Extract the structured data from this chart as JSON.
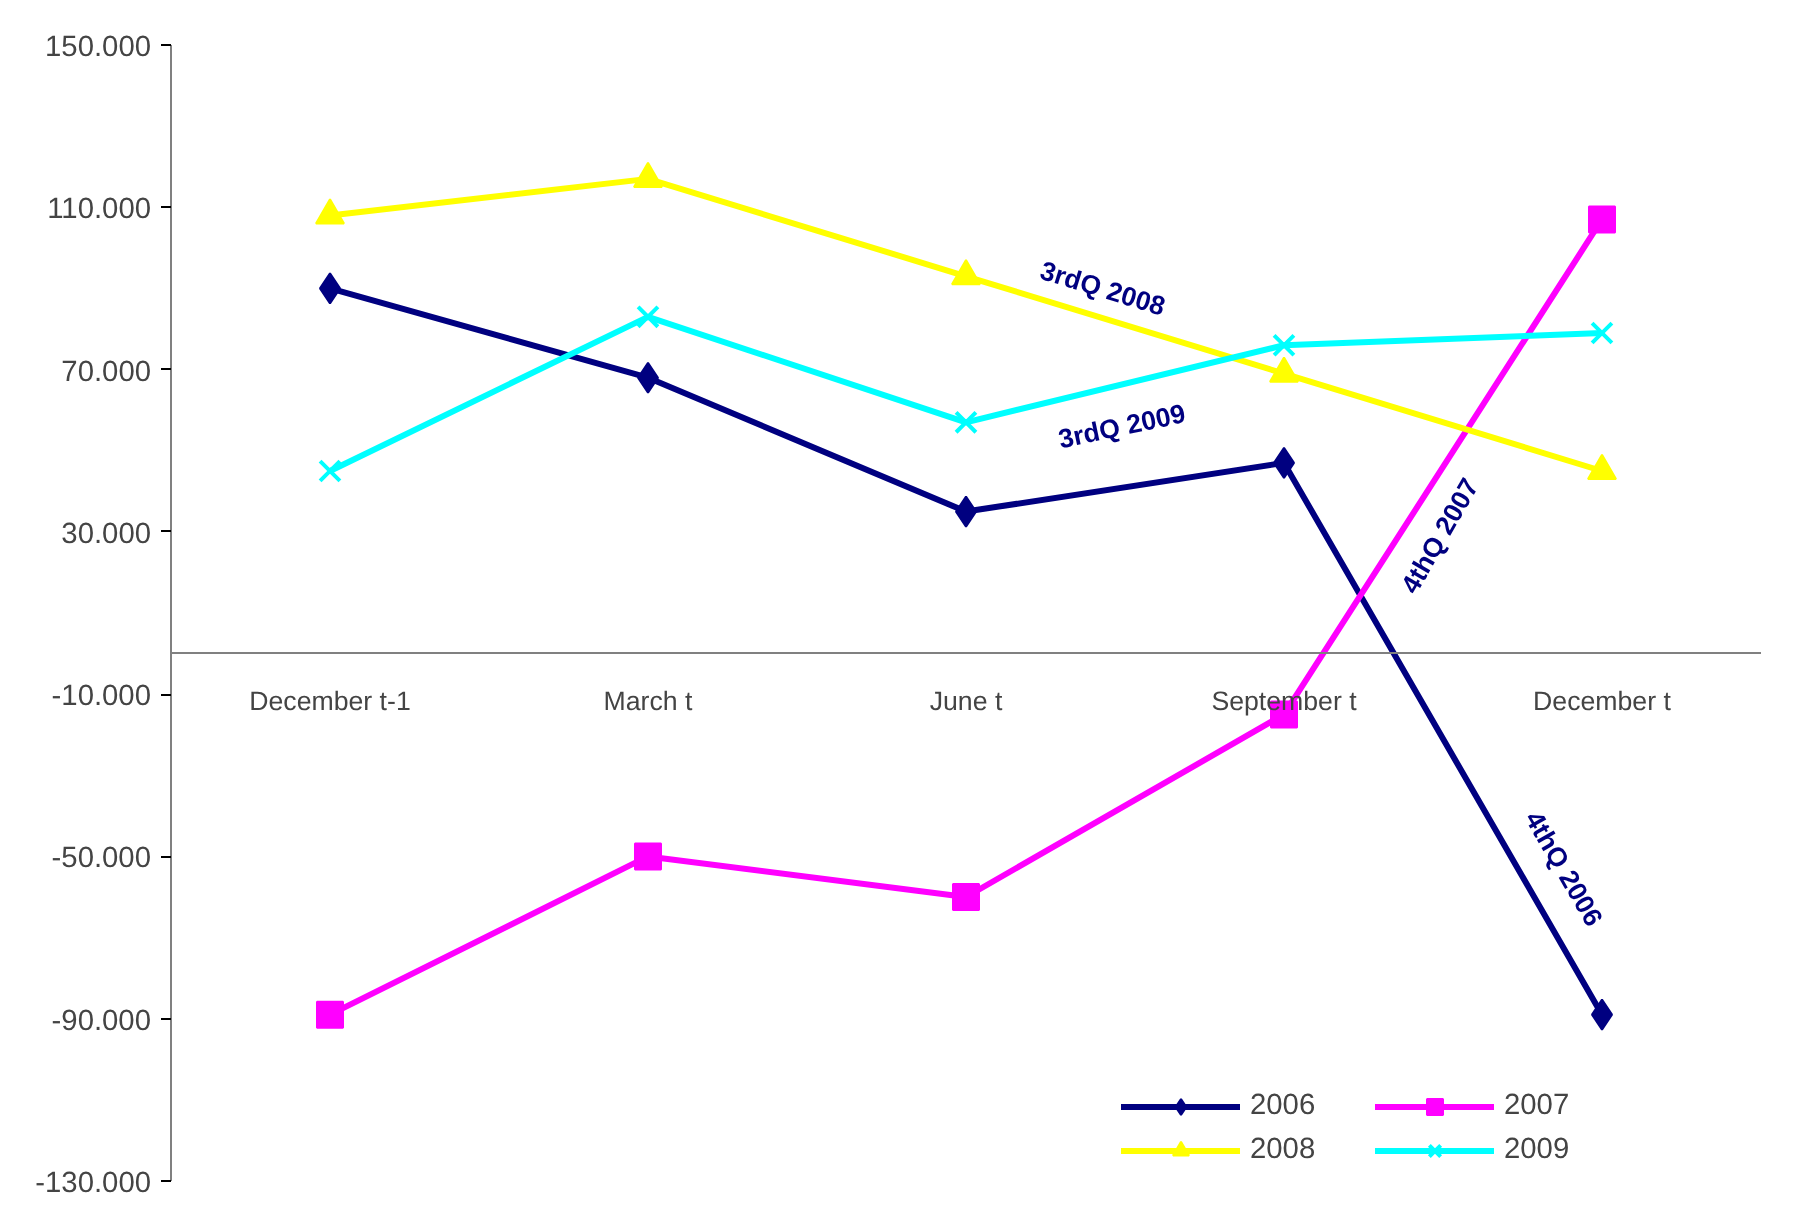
{
  "chart_data": {
    "type": "line",
    "categories": [
      "December t-1",
      "March t",
      "June t",
      "September t",
      "December t"
    ],
    "series": [
      {
        "name": "2006",
        "color": "#000080",
        "marker": "diamond",
        "values": [
          90,
          68,
          35,
          47,
          -89
        ]
      },
      {
        "name": "2007",
        "color": "#ff00ff",
        "marker": "square",
        "values": [
          -89,
          -50,
          -60,
          -15,
          107
        ]
      },
      {
        "name": "2008",
        "color": "#ffff00",
        "marker": "triangle",
        "values": [
          108,
          117,
          93,
          69,
          45
        ]
      },
      {
        "name": "2009",
        "color": "#00ffff",
        "marker": "cross",
        "values": [
          45,
          83,
          57,
          76,
          79
        ]
      }
    ],
    "ylim": [
      -130,
      150
    ],
    "yticks": [
      {
        "value": -130,
        "label": "-130.000"
      },
      {
        "value": -90,
        "label": "-90.000"
      },
      {
        "value": -50,
        "label": "-50.000"
      },
      {
        "value": -10,
        "label": "-10.000"
      },
      {
        "value": 30,
        "label": "30.000"
      },
      {
        "value": 70,
        "label": "70.000"
      },
      {
        "value": 110,
        "label": "110.000"
      },
      {
        "value": 150,
        "label": "150.000"
      }
    ],
    "annotations": [
      "3rdQ 2008",
      "3rdQ 2009",
      "4thQ 2007",
      "4thQ 2006"
    ],
    "grid": false,
    "legend": "bottom right"
  }
}
